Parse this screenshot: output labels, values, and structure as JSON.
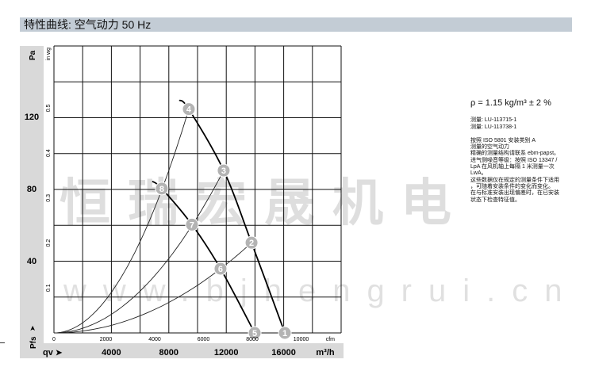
{
  "header": {
    "title": "特性曲线: 空气动力 50 Hz"
  },
  "info": {
    "density": "ρ = 1.15 kg/m³ ± 2 %",
    "measurements": [
      "测量: LU-113715-1",
      "测量: LU-113738-1"
    ],
    "notes": [
      "按照 ISO 5801 安装类别 A",
      "测量的空气动力",
      "精确的测量结构请联系 ebm-papst。",
      "进气侧噪音等级：按照 ISO 13347 /",
      "LpA 在风机轴上每隔 1 米测量一次",
      "LwA。",
      "这些数据仅在规定的测量条件下适用",
      "，可随着安装条件的变化而变化。",
      "在与标准安装出现偏差时，在已安装",
      "状态下检查特征值。"
    ]
  },
  "watermark": {
    "text": "恒瑞宏晟机电",
    "url": "www.bjhengrui.cn"
  },
  "colors": {
    "header": "#c3ccd5",
    "axis_band": "#d9d9d9",
    "marker": "#b3b3b3",
    "grid": "#111111"
  },
  "chart_data": {
    "type": "line",
    "title": "",
    "xlabel": "qv",
    "xunit": "m³/h",
    "xlabel_secondary_unit": "cfm",
    "ylabel": "Pfs",
    "yunit": "Pa",
    "ylabel_secondary_unit": "in wg",
    "xlim": [
      0,
      20000
    ],
    "ylim": [
      0,
      159
    ],
    "x_ticks": [
      "4000",
      "8000",
      "12000",
      "16000"
    ],
    "x_tick_values": [
      4000,
      8000,
      12000,
      16000
    ],
    "cfm_ticks": [
      "0",
      "2000",
      "4000",
      "6000",
      "8000",
      "10000"
    ],
    "y_ticks": [
      "40",
      "80",
      "120"
    ],
    "y_tick_values": [
      40,
      80,
      120
    ],
    "inwg_ticks": [
      "0.1",
      "0.2",
      "0.3",
      "0.4",
      "0.5"
    ],
    "grid": true,
    "fan_curves": [
      {
        "points": [
          [
            8730,
            129
          ],
          [
            9390,
            124
          ],
          [
            11820,
            90
          ],
          [
            13760,
            50
          ],
          [
            16080,
            0
          ]
        ]
      },
      {
        "points": [
          [
            6850,
            84
          ],
          [
            7510,
            80
          ],
          [
            9610,
            60
          ],
          [
            11600,
            35.6
          ],
          [
            13980,
            0
          ]
        ]
      }
    ],
    "system_curves": [
      {
        "through": [
          9390,
          124
        ]
      },
      {
        "through": [
          11820,
          90
        ]
      },
      {
        "through": [
          13760,
          50
        ]
      }
    ],
    "operating_points": [
      {
        "label": "1",
        "q": 16080,
        "p": 0
      },
      {
        "label": "2",
        "q": 13760,
        "p": 50
      },
      {
        "label": "3",
        "q": 11820,
        "p": 90
      },
      {
        "label": "4",
        "q": 9390,
        "p": 124
      },
      {
        "label": "5",
        "q": 13980,
        "p": 0
      },
      {
        "label": "6",
        "q": 11600,
        "p": 35.6
      },
      {
        "label": "7",
        "q": 9610,
        "p": 60
      },
      {
        "label": "8",
        "q": 7510,
        "p": 80
      }
    ]
  }
}
